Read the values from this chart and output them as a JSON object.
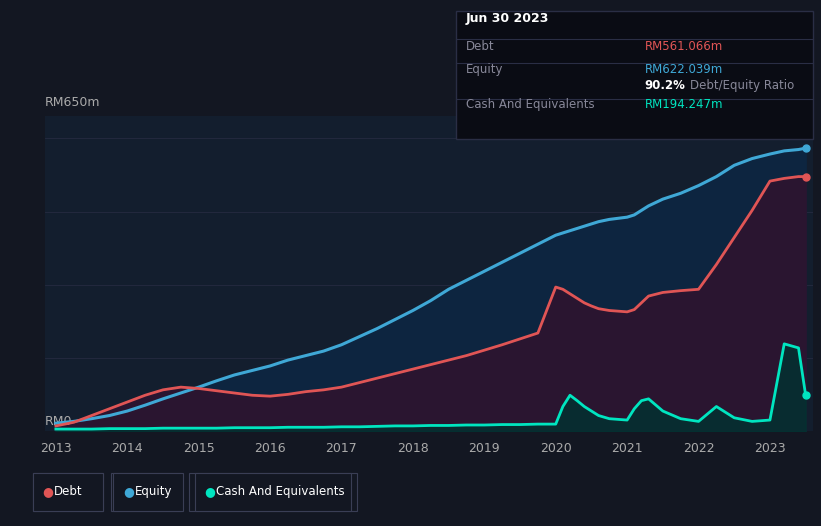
{
  "bg_color": "#131722",
  "plot_bg_color": "#131e2e",
  "grid_color": "#2a2e45",
  "tooltip": {
    "date": "Jun 30 2023",
    "debt_label": "Debt",
    "debt_value": "RM561.066m",
    "equity_label": "Equity",
    "equity_value": "RM622.039m",
    "ratio_value": "90.2%",
    "ratio_label": "Debt/Equity Ratio",
    "cash_label": "Cash And Equivalents",
    "cash_value": "RM194.247m"
  },
  "ylabel": "RM650m",
  "y0_label": "RM0",
  "debt_color": "#e05555",
  "equity_color": "#3fa8d6",
  "cash_color": "#00e5c0",
  "years": [
    2013.0,
    2013.25,
    2013.5,
    2013.75,
    2014.0,
    2014.25,
    2014.5,
    2014.75,
    2015.0,
    2015.25,
    2015.5,
    2015.75,
    2016.0,
    2016.25,
    2016.5,
    2016.75,
    2017.0,
    2017.25,
    2017.5,
    2017.75,
    2018.0,
    2018.25,
    2018.5,
    2018.75,
    2019.0,
    2019.25,
    2019.5,
    2019.75,
    2020.0,
    2020.1,
    2020.2,
    2020.3,
    2020.4,
    2020.5,
    2020.6,
    2020.75,
    2021.0,
    2021.1,
    2021.2,
    2021.3,
    2021.5,
    2021.75,
    2022.0,
    2022.25,
    2022.5,
    2022.75,
    2023.0,
    2023.2,
    2023.4,
    2023.5
  ],
  "equity": [
    18,
    22,
    28,
    35,
    45,
    58,
    72,
    85,
    98,
    112,
    125,
    135,
    145,
    158,
    168,
    178,
    192,
    210,
    228,
    248,
    268,
    290,
    315,
    335,
    355,
    375,
    395,
    415,
    435,
    440,
    445,
    450,
    455,
    460,
    465,
    470,
    475,
    480,
    490,
    500,
    515,
    528,
    545,
    565,
    590,
    605,
    615,
    622,
    625,
    628
  ],
  "debt": [
    12,
    20,
    35,
    50,
    65,
    80,
    92,
    98,
    95,
    90,
    85,
    80,
    78,
    82,
    88,
    92,
    98,
    108,
    118,
    128,
    138,
    148,
    158,
    168,
    180,
    192,
    205,
    218,
    320,
    315,
    305,
    295,
    285,
    278,
    272,
    268,
    265,
    270,
    285,
    300,
    308,
    312,
    315,
    370,
    430,
    490,
    555,
    561,
    565,
    565
  ],
  "cash": [
    5,
    5,
    5,
    6,
    6,
    6,
    7,
    7,
    7,
    7,
    8,
    8,
    8,
    9,
    9,
    9,
    10,
    10,
    11,
    12,
    12,
    13,
    13,
    14,
    14,
    15,
    15,
    16,
    16,
    55,
    80,
    68,
    55,
    45,
    35,
    28,
    25,
    50,
    68,
    72,
    45,
    28,
    22,
    55,
    30,
    22,
    25,
    194,
    185,
    80
  ],
  "xlim": [
    2012.85,
    2023.6
  ],
  "ylim": [
    0,
    700
  ],
  "yticks": [
    0,
    162.5,
    325,
    487.5,
    650
  ],
  "xticks": [
    2013,
    2014,
    2015,
    2016,
    2017,
    2018,
    2019,
    2020,
    2021,
    2022,
    2023
  ],
  "legend_items": [
    {
      "label": "Debt",
      "color": "#e05555"
    },
    {
      "label": "Equity",
      "color": "#3fa8d6"
    },
    {
      "label": "Cash And Equivalents",
      "color": "#00e5c0"
    }
  ]
}
